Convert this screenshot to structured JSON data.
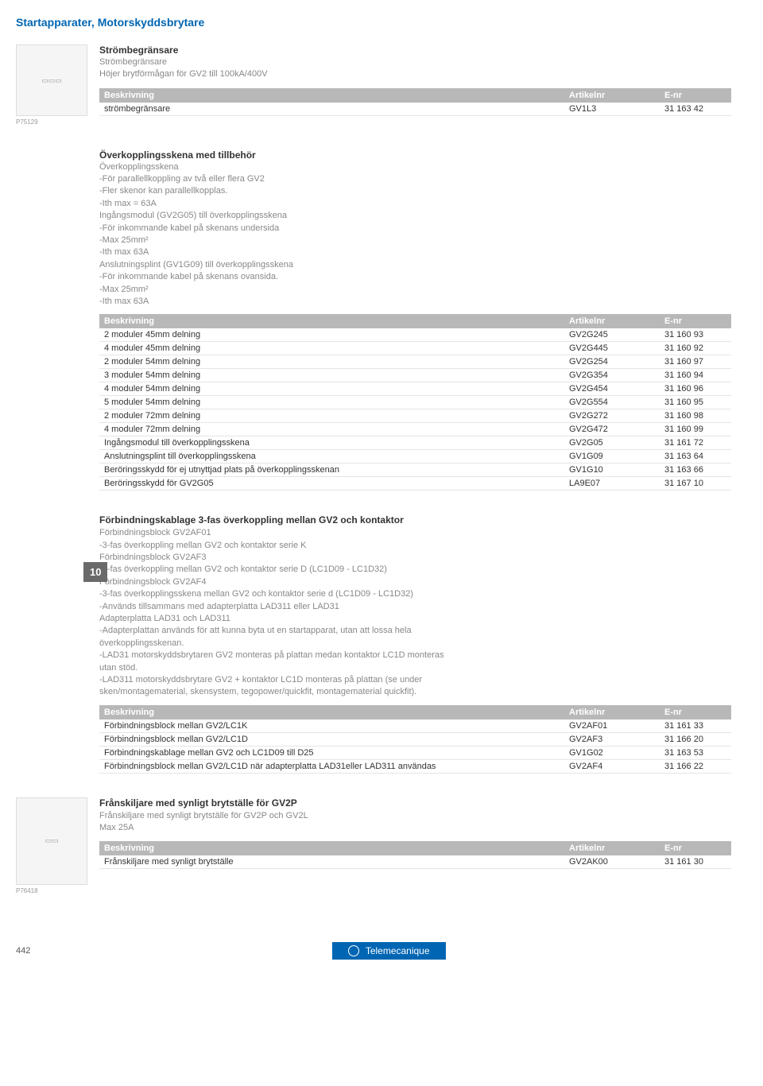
{
  "page_title": "Startapparater, Motorskyddsbrytare",
  "section1": {
    "title": "Strömbegränsare",
    "subtitle": "Strömbegränsare",
    "desc": "Höjer brytförmågan för GV2 till 100kA/400V",
    "headers": [
      "Beskrivning",
      "Artikelnr",
      "E-nr"
    ],
    "rows": [
      [
        "strömbegränsare",
        "GV1L3",
        "31 163 42"
      ]
    ],
    "img_caption": "P75129"
  },
  "section2": {
    "title": "Överkopplingsskena med tillbehör",
    "subtitle": "Överkopplingsskena",
    "desc_lines": [
      "-För parallellkoppling av två eller flera GV2",
      "-Fler skenor kan parallellkopplas.",
      "-Ith max = 63A",
      "Ingångsmodul (GV2G05) till överkopplingsskena",
      "-För inkommande kabel på skenans undersida",
      "-Max 25mm²",
      "-Ith max 63A",
      "Anslutningsplint (GV1G09) till överkopplingsskena",
      "-För inkommande kabel på skenans ovansida.",
      "-Max 25mm²",
      "-Ith max 63A"
    ],
    "headers": [
      "Beskrivning",
      "Artikelnr",
      "E-nr"
    ],
    "rows": [
      [
        "2 moduler 45mm delning",
        "GV2G245",
        "31 160 93"
      ],
      [
        "4 moduler 45mm delning",
        "GV2G445",
        "31 160 92"
      ],
      [
        "2 moduler 54mm delning",
        "GV2G254",
        "31 160 97"
      ],
      [
        "3 moduler 54mm delning",
        "GV2G354",
        "31 160 94"
      ],
      [
        "4 moduler 54mm delning",
        "GV2G454",
        "31 160 96"
      ],
      [
        "5 moduler 54mm delning",
        "GV2G554",
        "31 160 95"
      ],
      [
        "2 moduler 72mm delning",
        "GV2G272",
        "31 160 98"
      ],
      [
        "4 moduler 72mm delning",
        "GV2G472",
        "31 160 99"
      ],
      [
        "Ingångsmodul till överkopplingsskena",
        "GV2G05",
        "31 161 72"
      ],
      [
        "Anslutningsplint till överkopplingsskena",
        "GV1G09",
        "31 163 64"
      ],
      [
        "Beröringsskydd för ej utnyttjad plats på överkopplingsskenan",
        "GV1G10",
        "31 163 66"
      ],
      [
        "Beröringsskydd för GV2G05",
        "LA9E07",
        "31 167 10"
      ]
    ]
  },
  "section3": {
    "title": "Förbindningskablage 3-fas överkoppling mellan GV2 och kontaktor",
    "desc_lines": [
      "Förbindningsblock GV2AF01",
      "-3-fas överkoppling mellan GV2 och kontaktor serie K",
      "Förbindningsblock GV2AF3",
      "-3-fas överkoppling mellan GV2 och kontaktor serie D (LC1D09 - LC1D32)",
      "Förbindningsblock GV2AF4",
      "-3-fas överkopplingsskena mellan GV2 och kontaktor serie d (LC1D09 - LC1D32)",
      "-Används tillsammans med adapterplatta LAD311 eller LAD31",
      "Adapterplatta LAD31 och LAD311",
      "-Adapterplattan används för att kunna byta ut en startapparat, utan att lossa hela överkopplingsskenan.",
      "-LAD31 motorskyddsbrytaren GV2 monteras på plattan medan kontaktor LC1D monteras utan stöd.",
      "-LAD311 motorskyddsbrytare GV2 + kontaktor LC1D monteras på plattan (se under sken/montagematerial, skensystem, tegopower/quickfit, montagematerial quickfit)."
    ],
    "headers": [
      "Beskrivning",
      "Artikelnr",
      "E-nr"
    ],
    "rows": [
      [
        "Förbindningsblock mellan GV2/LC1K",
        "GV2AF01",
        "31 161 33"
      ],
      [
        "Förbindningsblock mellan GV2/LC1D",
        "GV2AF3",
        "31 166 20"
      ],
      [
        "Förbindningskablage mellan GV2 och LC1D09 till D25",
        "GV1G02",
        "31 163 53"
      ],
      [
        "Förbindningsblock mellan GV2/LC1D när adapterplatta LAD31eller LAD311 användas",
        "GV2AF4",
        "31 166 22"
      ]
    ],
    "tab": "10"
  },
  "section4": {
    "title": "Frånskiljare med synligt brytställe för GV2P",
    "desc_lines": [
      "Frånskiljare med synligt brytställe för GV2P och GV2L",
      "Max 25A"
    ],
    "headers": [
      "Beskrivning",
      "Artikelnr",
      "E-nr"
    ],
    "rows": [
      [
        "Frånskiljare med synligt brytställe",
        "GV2AK00",
        "31 161 30"
      ]
    ],
    "img_caption": "P76418"
  },
  "footer": {
    "page": "442",
    "brand": "Telemecanique"
  }
}
